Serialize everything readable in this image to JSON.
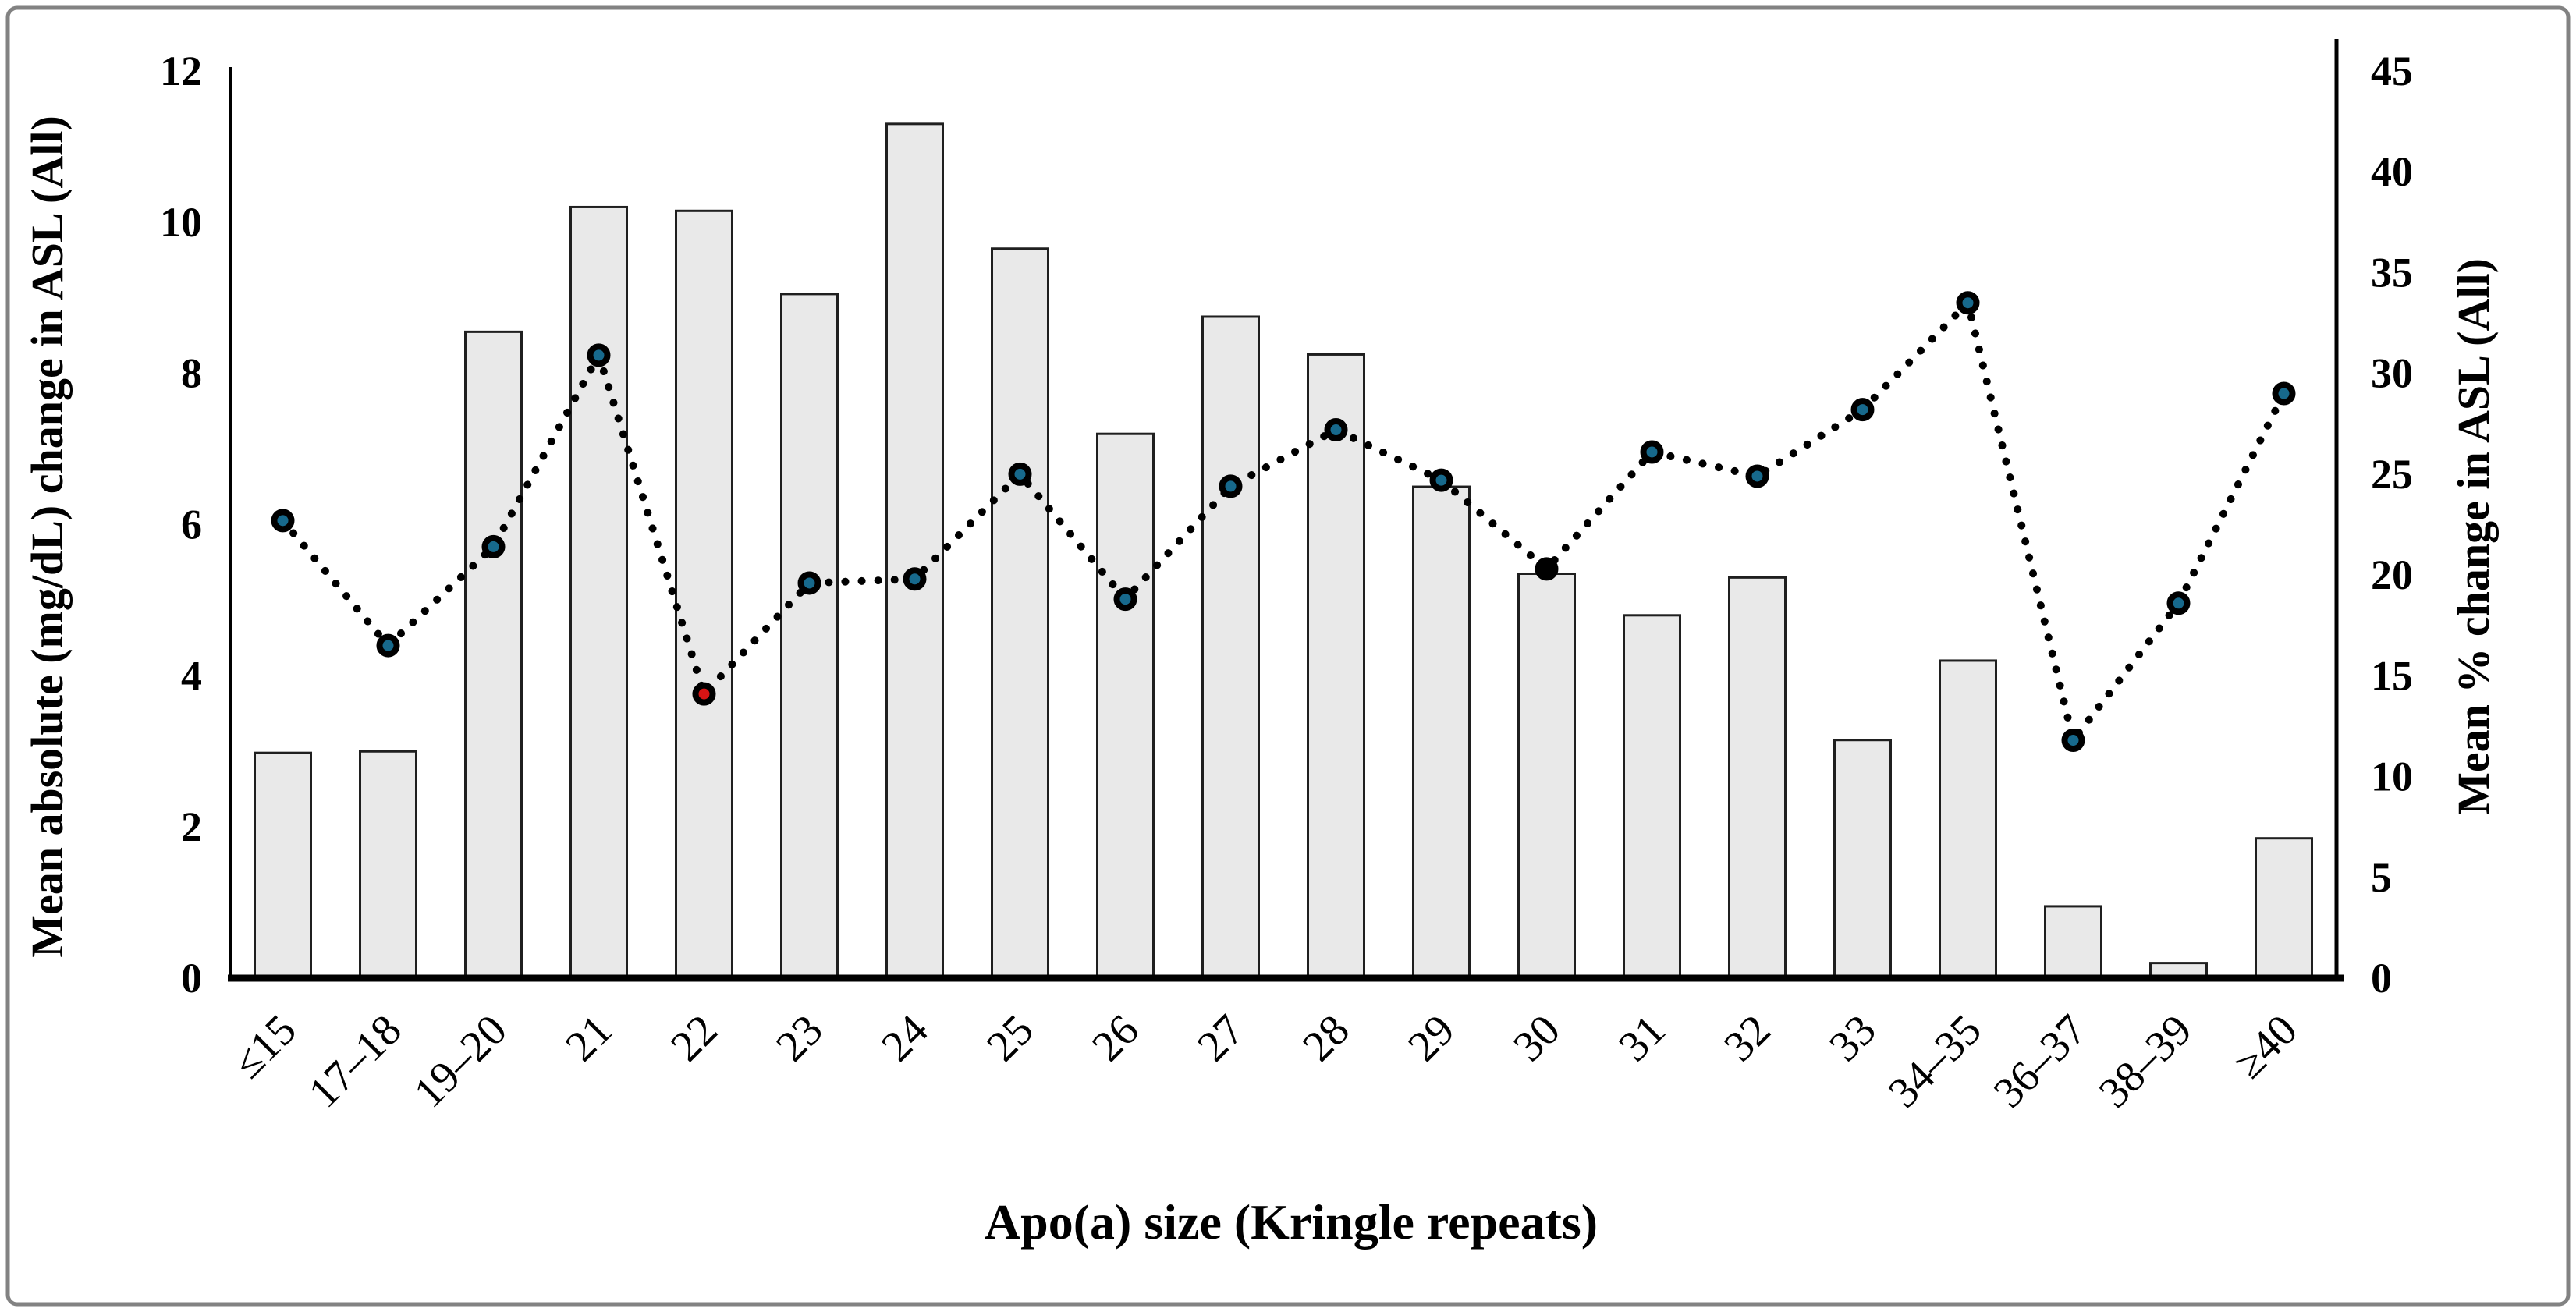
{
  "chart_data": {
    "type": "bar",
    "title": "",
    "xlabel": "Apo(a) size (Kringle repeats)",
    "ylabel_left": "Mean absolute (mg/dL) change in ASL (All)",
    "ylabel_right": "Mean % change in ASL (All)",
    "categories": [
      "≤15",
      "17–18",
      "19–20",
      "21",
      "22",
      "23",
      "24",
      "25",
      "26",
      "27",
      "28",
      "29",
      "30",
      "31",
      "32",
      "33",
      "34–35",
      "36–37",
      "38–39",
      "≥40"
    ],
    "series": [
      {
        "name": "Mean absolute (mg/dL) change in ASL (All)",
        "type": "bar",
        "axis": "left",
        "values": [
          2.98,
          3.0,
          8.55,
          10.2,
          10.15,
          9.05,
          11.3,
          9.65,
          7.2,
          8.75,
          8.25,
          6.5,
          5.35,
          4.8,
          5.3,
          3.15,
          4.2,
          0.95,
          0.2,
          1.85
        ]
      },
      {
        "name": "Mean % change in ASL (All)",
        "type": "line",
        "line_style": "dotted",
        "axis": "right",
        "values": [
          22.7,
          16.5,
          21.4,
          30.9,
          14.1,
          19.6,
          19.8,
          25.0,
          18.8,
          24.4,
          27.2,
          24.7,
          20.3,
          26.1,
          24.9,
          28.2,
          33.5,
          11.8,
          18.6,
          29.0
        ]
      }
    ],
    "left_axis": {
      "min": 0,
      "max": 12,
      "ticks": [
        0,
        2,
        4,
        6,
        8,
        10,
        12
      ]
    },
    "right_axis": {
      "min": 0,
      "max": 45,
      "ticks": [
        0,
        5,
        10,
        15,
        20,
        25,
        30,
        35,
        40,
        45
      ]
    },
    "grid": false,
    "legend": "none",
    "marker_overrides": [
      {
        "category": "22",
        "color": "#d81414"
      },
      {
        "category": "30",
        "color": "#000000"
      }
    ],
    "colors": {
      "bar_fill": "#e9e9e9",
      "bar_stroke": "#1f1f1f",
      "line_color": "#000000",
      "marker_fill": "#17698c",
      "marker_stroke": "#000000",
      "axis_color": "#000000",
      "frame_border": "#828282"
    }
  }
}
